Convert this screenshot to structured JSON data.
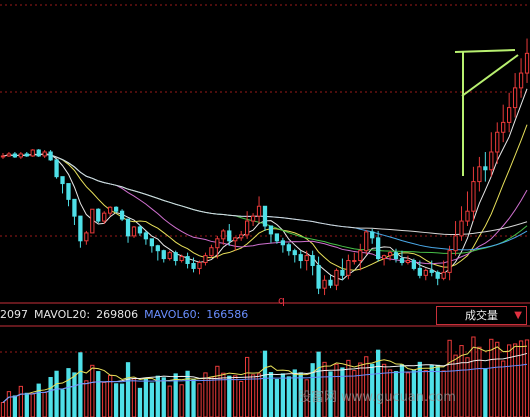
{
  "indicator_bar": {
    "vol_value": "2097",
    "mavol20_label": "MAVOL20:",
    "mavol20_value": "269806",
    "mavol60_label": "MAVOL60:",
    "mavol60_value": "166586"
  },
  "volume_button": {
    "label": "成交量",
    "arrow": "▼"
  },
  "marker": "q",
  "watermark": "股富网 www.gucuan.com",
  "colors": {
    "background": "#000000",
    "up_candle": "#e83a3a",
    "down_candle": "#4fe0e8",
    "ma_white": "#e8e8e8",
    "ma_yellow": "#e8e05a",
    "ma_pink": "#d070d0",
    "ma_green": "#48c048",
    "ma_blue": "#4aa8e8",
    "grid": "#9a1a1a",
    "mavol20": "#f0f0f0",
    "mavol60": "#6a8fff",
    "annotation": "#b8f070"
  },
  "chart_data": {
    "type": "candlestick",
    "candles": [
      [
        265,
        266,
        269,
        263
      ],
      [
        266,
        268,
        270,
        265
      ],
      [
        268,
        265,
        270,
        264
      ],
      [
        265,
        268,
        270,
        263
      ],
      [
        268,
        266,
        270,
        265
      ],
      [
        266,
        272,
        273,
        265
      ],
      [
        272,
        266,
        273,
        265
      ],
      [
        266,
        270,
        272,
        264
      ],
      [
        270,
        262,
        272,
        261
      ],
      [
        262,
        245,
        246,
        243
      ],
      [
        245,
        238,
        240,
        228
      ],
      [
        238,
        222,
        223,
        215
      ],
      [
        222,
        205,
        207,
        196
      ],
      [
        205,
        180,
        181,
        173
      ],
      [
        180,
        188,
        190,
        176
      ],
      [
        188,
        212,
        212,
        188
      ],
      [
        212,
        200,
        213,
        198
      ],
      [
        200,
        208,
        210,
        197
      ],
      [
        208,
        214,
        215,
        205
      ],
      [
        214,
        210,
        215,
        208
      ],
      [
        210,
        202,
        212,
        200
      ],
      [
        202,
        185,
        202,
        178
      ],
      [
        185,
        194,
        195,
        183
      ],
      [
        194,
        188,
        196,
        185
      ],
      [
        188,
        182,
        190,
        176
      ],
      [
        182,
        175,
        180,
        168
      ],
      [
        175,
        170,
        176,
        160
      ],
      [
        170,
        162,
        171,
        158
      ],
      [
        162,
        168,
        170,
        160
      ],
      [
        168,
        160,
        170,
        155
      ],
      [
        160,
        164,
        166,
        158
      ],
      [
        164,
        157,
        168,
        152
      ],
      [
        157,
        152,
        163,
        148
      ],
      [
        152,
        158,
        160,
        146
      ],
      [
        158,
        165,
        168,
        155
      ],
      [
        165,
        173,
        176,
        163
      ],
      [
        173,
        182,
        185,
        162
      ],
      [
        182,
        190,
        192,
        176
      ],
      [
        190,
        180,
        197,
        175
      ],
      [
        180,
        183,
        184,
        170
      ],
      [
        183,
        186,
        190,
        180
      ],
      [
        186,
        200,
        210,
        182
      ],
      [
        200,
        205,
        208,
        195
      ],
      [
        205,
        215,
        225,
        198
      ],
      [
        215,
        195,
        215,
        190
      ],
      [
        195,
        187,
        190,
        178
      ],
      [
        187,
        180,
        187,
        177
      ],
      [
        180,
        176,
        183,
        168
      ],
      [
        176,
        170,
        178,
        165
      ],
      [
        170,
        166,
        172,
        158
      ],
      [
        166,
        160,
        170,
        152
      ],
      [
        160,
        165,
        170,
        150
      ],
      [
        165,
        155,
        170,
        145
      ],
      [
        155,
        132,
        164,
        126
      ],
      [
        132,
        140,
        145,
        125
      ],
      [
        140,
        135,
        145,
        132
      ],
      [
        135,
        150,
        152,
        130
      ],
      [
        150,
        145,
        162,
        140
      ],
      [
        145,
        160,
        166,
        141
      ],
      [
        160,
        160,
        168,
        156
      ],
      [
        160,
        170,
        177,
        150
      ],
      [
        170,
        189,
        191,
        166
      ],
      [
        189,
        183,
        192,
        177
      ],
      [
        183,
        162,
        190,
        159
      ],
      [
        162,
        165,
        166,
        155
      ],
      [
        165,
        168,
        170,
        160
      ],
      [
        168,
        162,
        172,
        158
      ],
      [
        162,
        158,
        170,
        155
      ],
      [
        158,
        160,
        165,
        156
      ],
      [
        160,
        152,
        162,
        150
      ],
      [
        152,
        145,
        160,
        142
      ],
      [
        145,
        150,
        152,
        140
      ],
      [
        150,
        148,
        160,
        144
      ],
      [
        148,
        142,
        150,
        135
      ],
      [
        142,
        148,
        160,
        140
      ],
      [
        148,
        170,
        175,
        140
      ],
      [
        170,
        185,
        200,
        165
      ],
      [
        185,
        200,
        215,
        180
      ],
      [
        200,
        210,
        230,
        195
      ],
      [
        210,
        240,
        255,
        200
      ],
      [
        240,
        255,
        265,
        230
      ],
      [
        255,
        252,
        270,
        240
      ],
      [
        252,
        270,
        290,
        245
      ],
      [
        270,
        290,
        300,
        258
      ],
      [
        290,
        300,
        318,
        280
      ],
      [
        300,
        315,
        330,
        290
      ],
      [
        315,
        335,
        350,
        305
      ],
      [
        335,
        350,
        365,
        325
      ],
      [
        350,
        370,
        385,
        340
      ]
    ],
    "annotations": [
      "trend-lines"
    ]
  }
}
